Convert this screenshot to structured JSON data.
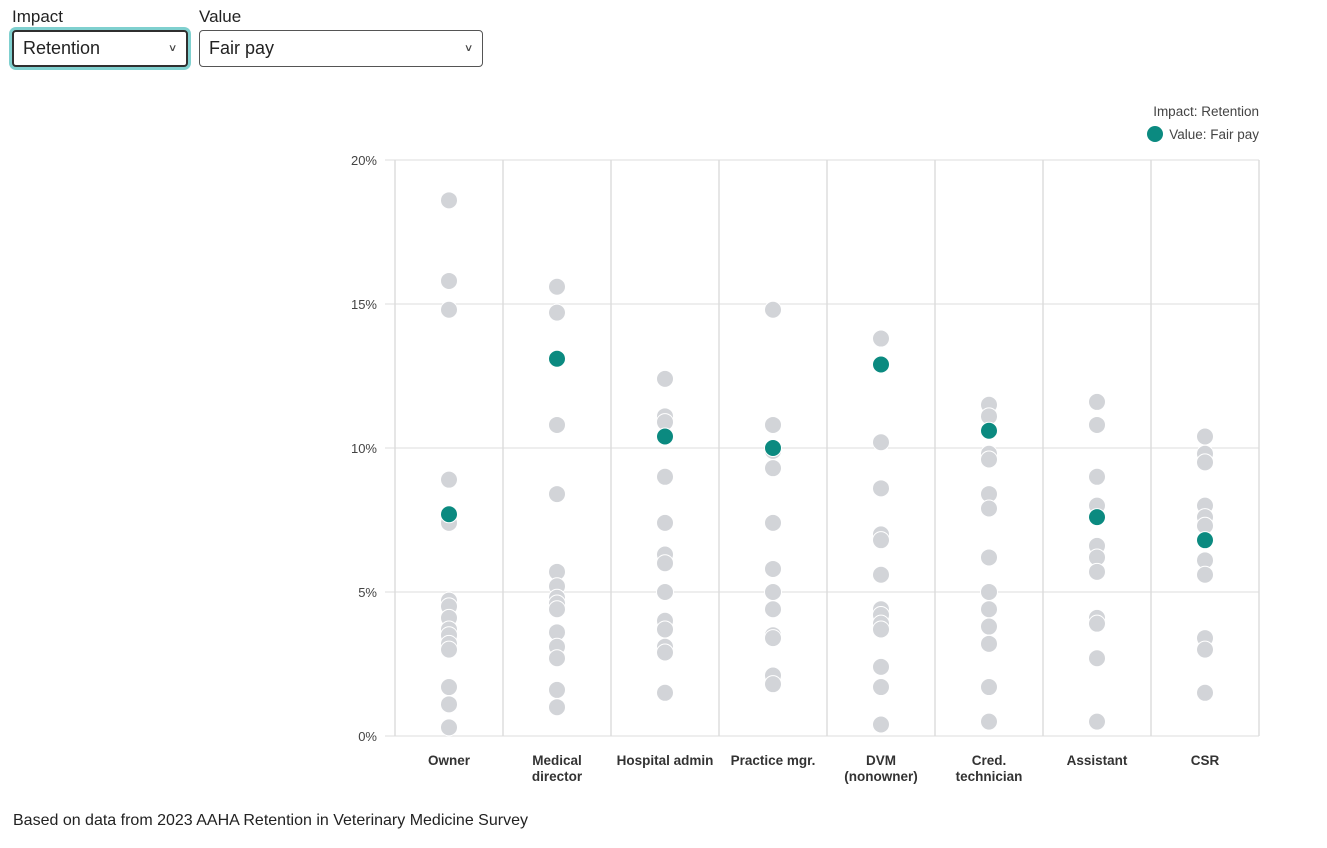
{
  "controls": {
    "impact": {
      "label": "Impact",
      "selected": "Retention"
    },
    "value": {
      "label": "Value",
      "selected": "Fair pay"
    }
  },
  "legend": {
    "impact_text": "Impact: Retention",
    "value_text": "Value: Fair pay"
  },
  "footnote": "Based on data from 2023 AAHA Retention in Veterinary Medicine Survey",
  "colors": {
    "highlight": "#0b8a80",
    "other": "#d2d4d8",
    "grid": "#dddddd",
    "axis_text": "#444444"
  },
  "chart_data": {
    "type": "scatter",
    "categories": [
      "Owner",
      "Medical director",
      "Hospital admin",
      "Practice mgr.",
      "DVM (nonowner)",
      "Cred. technician",
      "Assistant",
      "CSR"
    ],
    "category_label_lines": [
      [
        "Owner"
      ],
      [
        "Medical",
        "director"
      ],
      [
        "Hospital admin"
      ],
      [
        "Practice mgr."
      ],
      [
        "DVM",
        "(nonowner)"
      ],
      [
        "Cred.",
        "technician"
      ],
      [
        "Assistant"
      ],
      [
        "CSR"
      ]
    ],
    "y_ticks": [
      "0%",
      "5%",
      "10%",
      "15%",
      "20%"
    ],
    "ylim": [
      0,
      20
    ],
    "y_unit": "%",
    "grid": true,
    "legend_position": "top-right",
    "series": [
      {
        "name": "Value: Fair pay",
        "highlighted": true,
        "values": [
          7.7,
          13.1,
          10.4,
          10.0,
          12.9,
          10.6,
          7.6,
          6.8
        ]
      },
      {
        "highlighted": false,
        "values_by_category": [
          [
            18.6,
            15.8,
            14.8,
            8.9,
            7.4,
            4.7,
            4.5,
            4.1,
            3.7,
            3.5,
            3.2,
            3.0,
            1.7,
            1.1,
            0.3
          ],
          [
            15.6,
            14.7,
            10.8,
            8.4,
            5.7,
            5.2,
            4.8,
            4.6,
            4.4,
            3.6,
            3.1,
            2.7,
            1.6,
            1.0
          ],
          [
            12.4,
            11.1,
            10.9,
            9.0,
            7.4,
            6.3,
            6.0,
            5.0,
            4.0,
            3.7,
            3.1,
            2.9,
            1.5
          ],
          [
            14.8,
            10.8,
            9.9,
            9.3,
            7.4,
            5.8,
            5.0,
            4.4,
            3.5,
            3.4,
            2.1,
            1.8
          ],
          [
            13.8,
            10.2,
            8.6,
            7.0,
            6.8,
            5.6,
            4.4,
            4.2,
            3.9,
            3.7,
            2.4,
            1.7,
            0.4
          ],
          [
            11.5,
            11.1,
            9.8,
            9.6,
            8.4,
            7.9,
            6.2,
            5.0,
            4.4,
            3.8,
            3.2,
            1.7,
            0.5
          ],
          [
            11.6,
            10.8,
            9.0,
            8.0,
            6.6,
            6.2,
            5.7,
            4.1,
            3.9,
            2.7,
            0.5
          ],
          [
            10.4,
            9.8,
            9.5,
            8.0,
            7.6,
            7.3,
            6.1,
            5.6,
            3.4,
            3.0,
            1.5
          ]
        ]
      }
    ]
  }
}
